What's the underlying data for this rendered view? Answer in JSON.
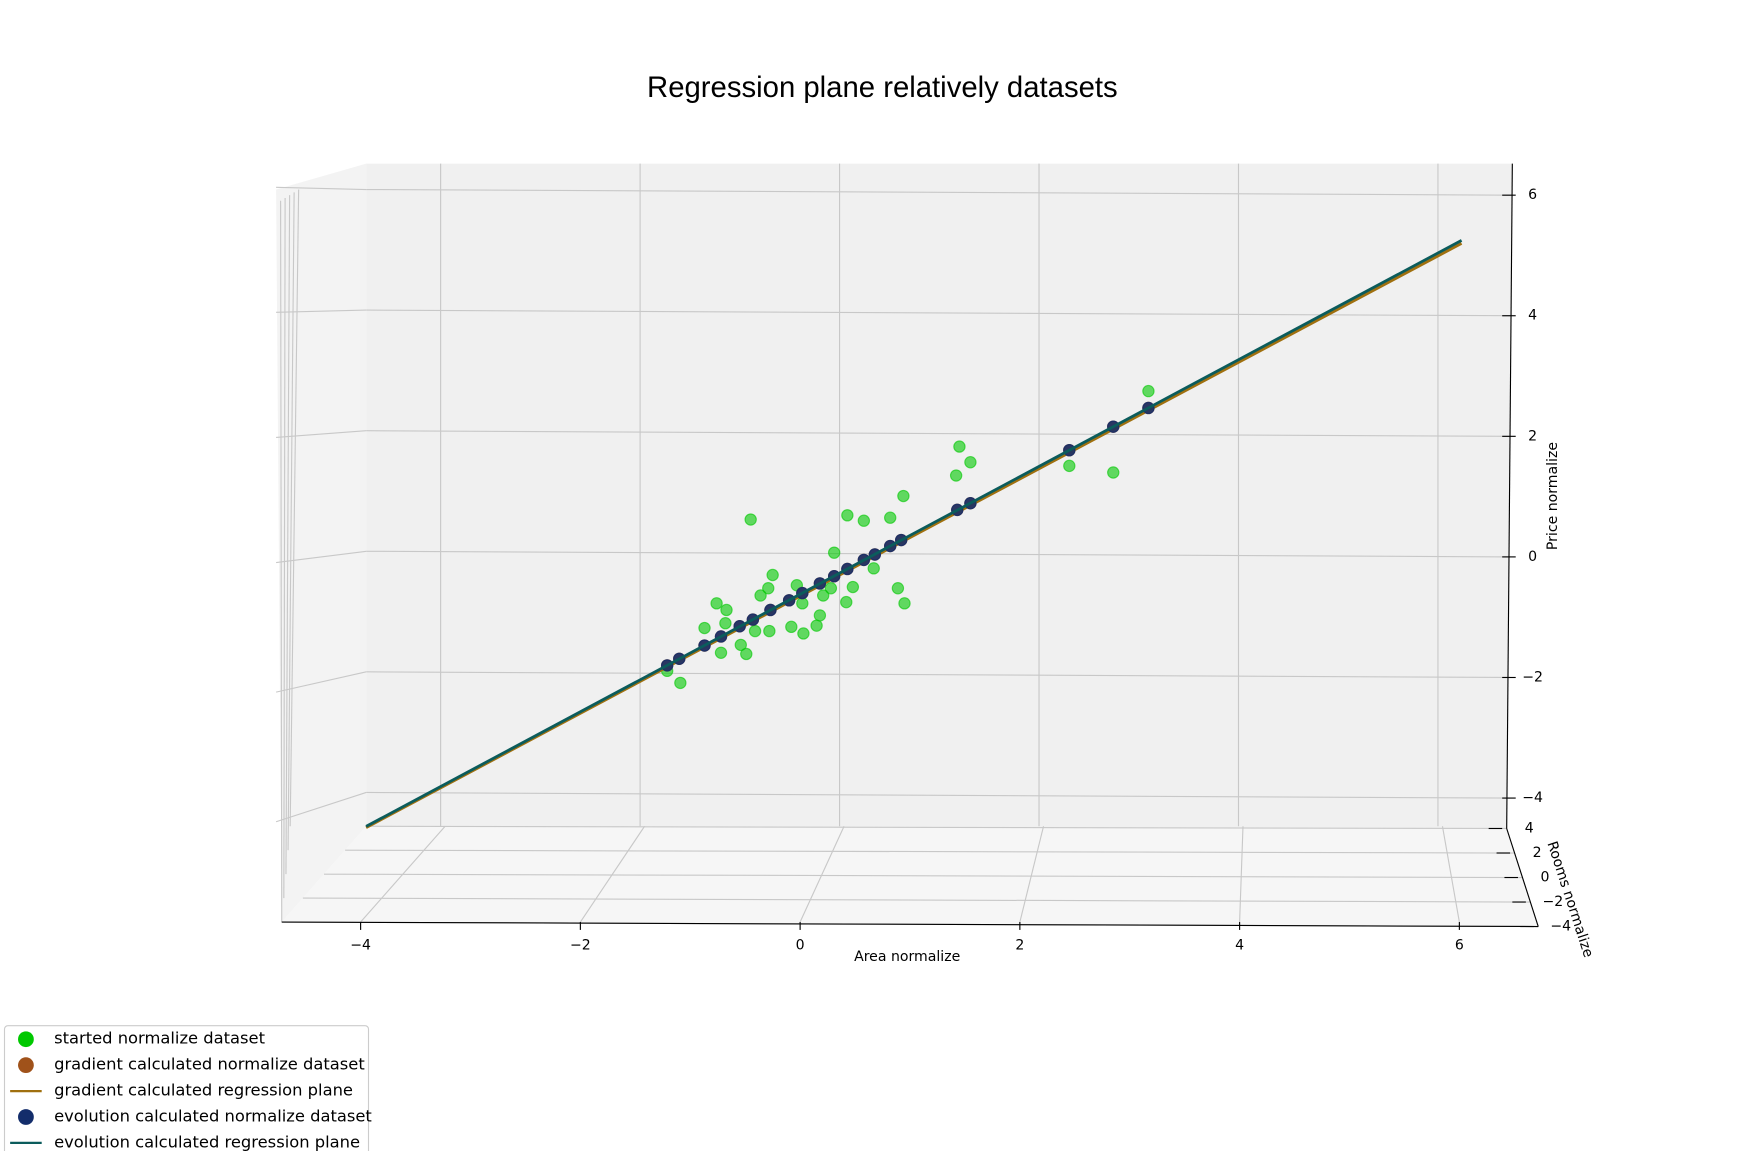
{
  "chart_data": {
    "type": "scatter3d",
    "title": "Regression plane relatively datasets",
    "x_label": "Area normalize",
    "y_label": "Price normalize",
    "z_label": "Rooms normalize",
    "xlim": [
      -4.7,
      6.7
    ],
    "ylim": [
      -4.5,
      6.5
    ],
    "zlim": [
      -4,
      4
    ],
    "xticks": [
      {
        "value": -4,
        "label": "−4"
      },
      {
        "value": -2,
        "label": "−2"
      },
      0,
      2,
      4,
      6
    ],
    "yticks": [
      {
        "value": -4,
        "label": "−4"
      },
      {
        "value": -2,
        "label": "−2"
      },
      0,
      2,
      4,
      6
    ],
    "zticks": [
      4,
      2,
      0,
      {
        "value": -2,
        "label": "−2"
      },
      {
        "value": -4,
        "label": "−4"
      }
    ],
    "grid": true,
    "legend_position": "lower left",
    "series": [
      {
        "name": "started normalize dataset",
        "type": "scatter",
        "color": "#00c800",
        "x": [
          -0.45,
          0.43,
          0.58,
          0.82,
          0.94,
          1.45,
          1.55,
          1.42,
          2.45,
          2.85,
          3.17,
          0.31,
          -0.25,
          -0.29,
          -0.36,
          -0.03,
          -0.76,
          -0.67,
          -0.87,
          -0.68,
          0.48,
          0.67,
          0.28,
          0.21,
          0.02,
          0.18,
          0.42,
          0.89,
          0.95,
          -0.08,
          0.03,
          0.15,
          -0.28,
          -0.41,
          -0.54,
          -0.49,
          -0.72,
          -1.21,
          -1.09
        ],
        "values": [
          0.62,
          0.69,
          0.6,
          0.65,
          1.01,
          1.83,
          1.57,
          1.35,
          1.51,
          1.4,
          2.75,
          0.07,
          -0.3,
          -0.52,
          -0.64,
          -0.47,
          -0.77,
          -0.88,
          -1.18,
          -1.1,
          -0.5,
          -0.19,
          -0.52,
          -0.64,
          -0.77,
          -0.97,
          -0.75,
          -0.52,
          -0.77,
          -1.16,
          -1.27,
          -1.14,
          -1.23,
          -1.23,
          -1.46,
          -1.61,
          -1.59,
          -1.89,
          -2.09
        ]
      },
      {
        "name": "gradient calculated normalize dataset",
        "type": "scatter",
        "color": "#a0521a",
        "x": [
          -1.21,
          -1.1,
          -0.87,
          -0.72,
          -0.55,
          -0.43,
          -0.27,
          -0.1,
          0.02,
          0.18,
          0.31,
          0.43,
          0.58,
          0.68,
          0.82,
          0.92,
          1.43,
          1.55,
          2.45,
          2.85,
          3.17
        ],
        "values": [
          -1.8,
          -1.69,
          -1.47,
          -1.32,
          -1.15,
          -1.04,
          -0.88,
          -0.72,
          -0.6,
          -0.44,
          -0.32,
          -0.2,
          -0.05,
          0.04,
          0.18,
          0.28,
          0.78,
          0.89,
          1.77,
          2.16,
          2.47
        ]
      },
      {
        "name": "gradient calculated regression plane",
        "type": "line",
        "color": "#a0700f",
        "x": [
          -3.95,
          6.02
        ],
        "values": [
          -4.49,
          5.2
        ]
      },
      {
        "name": "evolution calculated normalize dataset",
        "type": "scatter",
        "color": "#132d6b",
        "x": [
          -1.21,
          -1.1,
          -0.87,
          -0.72,
          -0.55,
          -0.43,
          -0.27,
          -0.1,
          0.02,
          0.18,
          0.31,
          0.43,
          0.58,
          0.68,
          0.82,
          0.92,
          1.43,
          1.55,
          2.45,
          2.85,
          3.17
        ],
        "values": [
          -1.8,
          -1.69,
          -1.47,
          -1.32,
          -1.15,
          -1.04,
          -0.88,
          -0.72,
          -0.6,
          -0.44,
          -0.32,
          -0.2,
          -0.05,
          0.04,
          0.18,
          0.28,
          0.78,
          0.89,
          1.77,
          2.16,
          2.47
        ]
      },
      {
        "name": "evolution calculated regression plane",
        "type": "line",
        "color": "#0b5c5c",
        "x": [
          -3.95,
          6.02
        ],
        "values": [
          -4.47,
          5.25
        ]
      }
    ]
  }
}
